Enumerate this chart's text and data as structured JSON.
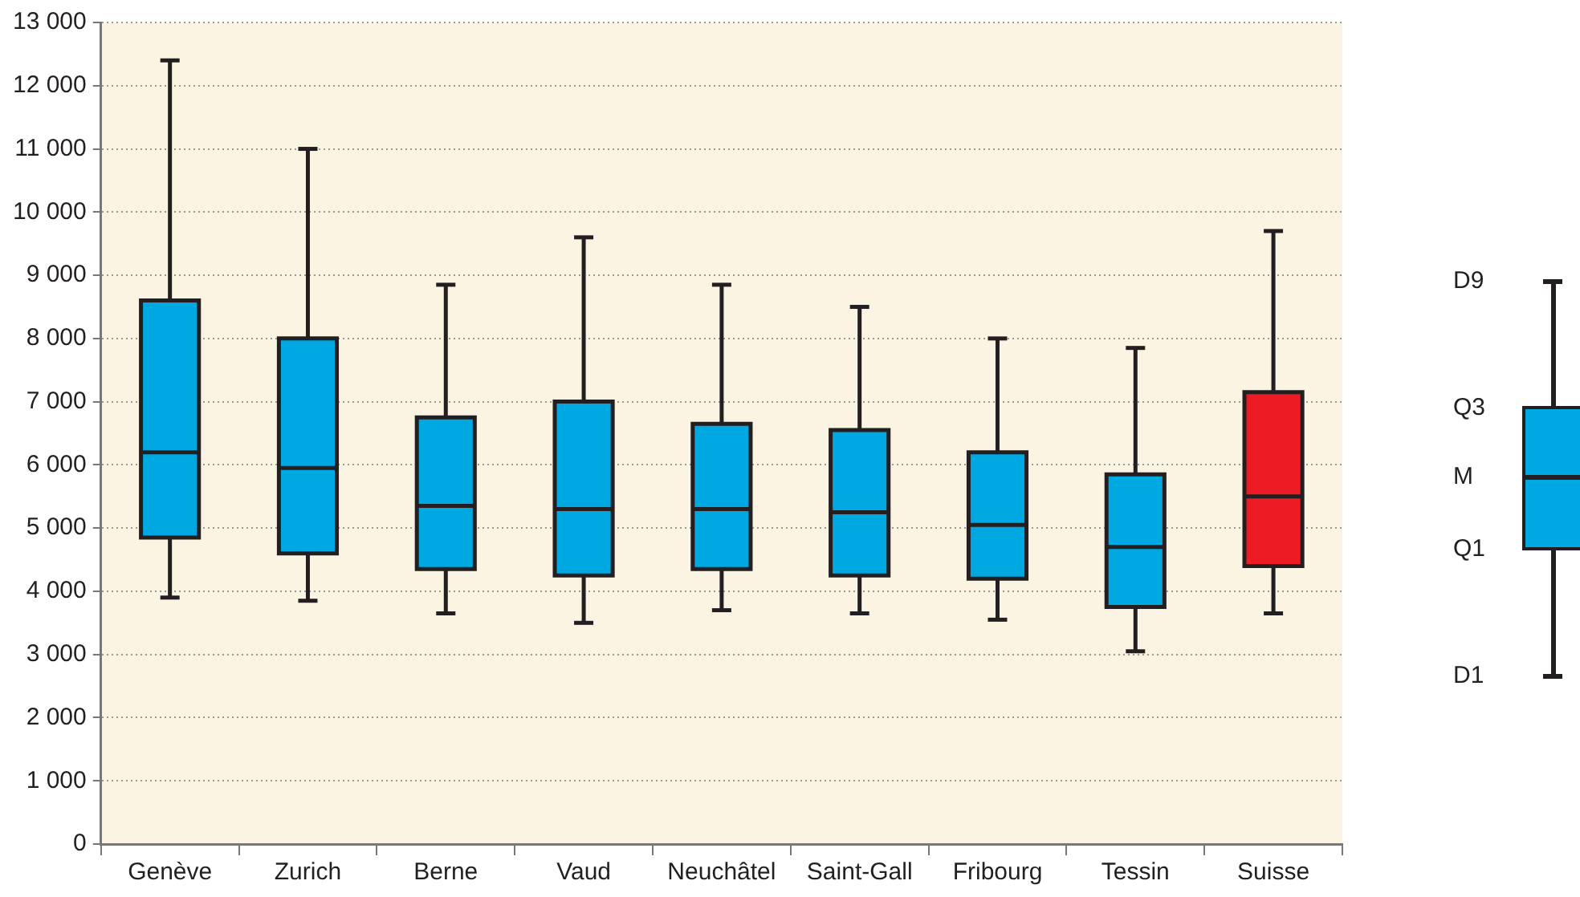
{
  "chart_data": {
    "type": "box",
    "categories": [
      "Genève",
      "Zurich",
      "Berne",
      "Vaud",
      "Neuchâtel",
      "Saint-Gall",
      "Fribourg",
      "Tessin",
      "Suisse"
    ],
    "boxes": [
      {
        "low": 3900,
        "q1": 4850,
        "median": 6200,
        "q3": 8600,
        "high": 12400
      },
      {
        "low": 3850,
        "q1": 4600,
        "median": 5950,
        "q3": 8000,
        "high": 11000
      },
      {
        "low": 3650,
        "q1": 4350,
        "median": 5350,
        "q3": 6750,
        "high": 8850
      },
      {
        "low": 3500,
        "q1": 4250,
        "median": 5300,
        "q3": 7000,
        "high": 9600
      },
      {
        "low": 3700,
        "q1": 4350,
        "median": 5300,
        "q3": 6650,
        "high": 8850
      },
      {
        "low": 3650,
        "q1": 4250,
        "median": 5250,
        "q3": 6550,
        "high": 8500
      },
      {
        "low": 3550,
        "q1": 4200,
        "median": 5050,
        "q3": 6200,
        "high": 8000
      },
      {
        "low": 3050,
        "q1": 3750,
        "median": 4700,
        "q3": 5850,
        "high": 7850
      },
      {
        "low": 3650,
        "q1": 4400,
        "median": 5500,
        "q3": 7150,
        "high": 9700
      }
    ],
    "colors": [
      "#00a8e1",
      "#00a8e1",
      "#00a8e1",
      "#00a8e1",
      "#00a8e1",
      "#00a8e1",
      "#00a8e1",
      "#00a8e1",
      "#ed1c24"
    ],
    "ylim": [
      0,
      13000
    ],
    "yticks": [
      {
        "value": 0,
        "label": "0"
      },
      {
        "value": 1000,
        "label": "1 000"
      },
      {
        "value": 2000,
        "label": "2 000"
      },
      {
        "value": 3000,
        "label": "3 000"
      },
      {
        "value": 4000,
        "label": "4 000"
      },
      {
        "value": 5000,
        "label": "5 000"
      },
      {
        "value": 6000,
        "label": "6 000"
      },
      {
        "value": 7000,
        "label": "7 000"
      },
      {
        "value": 8000,
        "label": "8 000"
      },
      {
        "value": 9000,
        "label": "9 000"
      },
      {
        "value": 10000,
        "label": "10 000"
      },
      {
        "value": 11000,
        "label": "11 000"
      },
      {
        "value": 12000,
        "label": "12 000"
      },
      {
        "value": 13000,
        "label": "13 000"
      }
    ],
    "grid": "y",
    "annotations": [
      "D9",
      "Q3",
      "M",
      "Q1",
      "D1"
    ]
  }
}
